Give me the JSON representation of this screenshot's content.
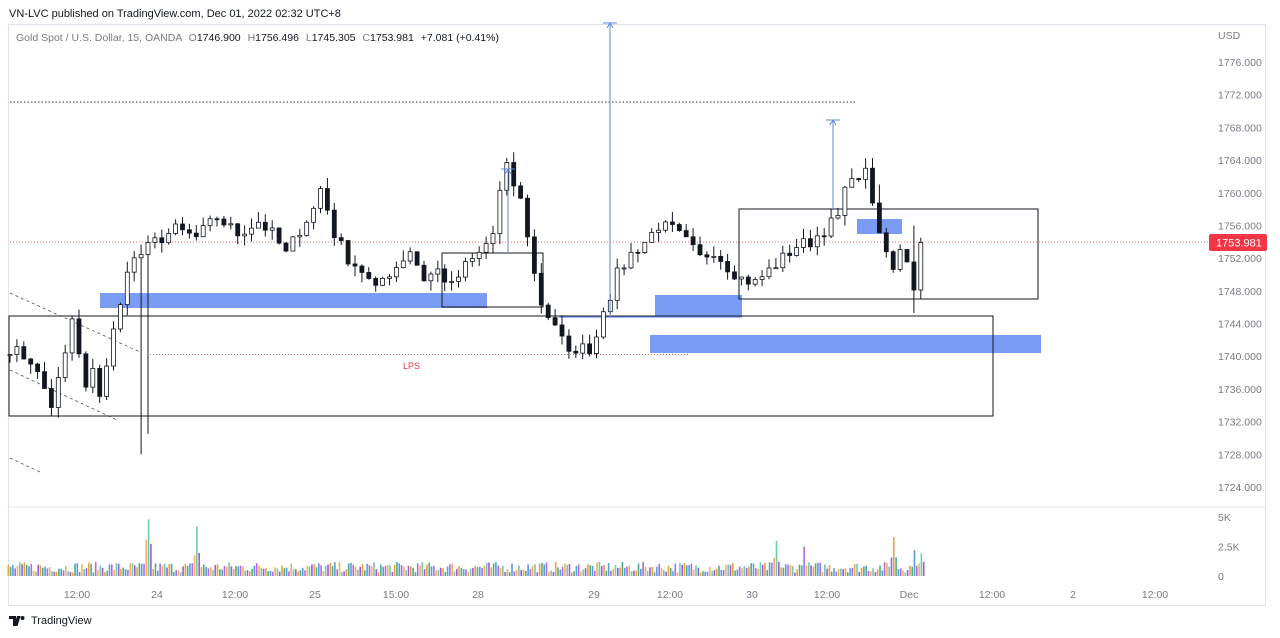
{
  "header": {
    "publisher_line": "VN-LVC published on TradingView.com, Dec 01, 2022 02:32 UTC+8"
  },
  "legend": {
    "symbol": "Gold Spot / U.S. Dollar, 15, OANDA",
    "open_label": "O",
    "open": "1746.900",
    "high_label": "H",
    "high": "1756.496",
    "low_label": "L",
    "low": "1745.305",
    "close_label": "C",
    "close": "1753.981",
    "change": "+7.081 (+0.41%)"
  },
  "footer": {
    "brand": "TradingView"
  },
  "colors": {
    "zone_blue": "#7b9cf5",
    "target_line": "#5b8bd8",
    "price_tag": "#f23645",
    "candle": "#131722",
    "volume_palette": [
      "#e8a33c",
      "#4caf8a",
      "#5b9be6",
      "#b56ad9",
      "#f0b35a",
      "#71c9b5",
      "#a05ad8"
    ]
  },
  "chart_data": {
    "type": "candlestick",
    "instrument": "Gold Spot / U.S. Dollar",
    "interval": "15",
    "currency_label": "USD",
    "ylim": [
      1721,
      1780
    ],
    "y_ticks": [
      "1776.000",
      "1772.000",
      "1768.000",
      "1764.000",
      "1760.000",
      "1756.000",
      "1752.000",
      "1748.000",
      "1744.000",
      "1740.000",
      "1736.000",
      "1732.000",
      "1728.000",
      "1724.000"
    ],
    "x_ticks": [
      "12:00",
      "24",
      "12:00",
      "25",
      "15:00",
      "28",
      "29",
      "12:00",
      "30",
      "12:00",
      "Dec",
      "12:00",
      "2",
      "12:00"
    ],
    "last_price": "1753.981",
    "annotation_text": "LPS",
    "price_path": [
      [
        0,
        1741
      ],
      [
        3,
        1739.5
      ],
      [
        5,
        1736
      ],
      [
        6,
        1734
      ],
      [
        7,
        1737
      ],
      [
        8,
        1740
      ],
      [
        9,
        1744.5
      ],
      [
        10,
        1740
      ],
      [
        11,
        1736
      ],
      [
        12,
        1738
      ],
      [
        13,
        1735.5
      ],
      [
        14,
        1739
      ],
      [
        15,
        1743
      ],
      [
        16,
        1746
      ],
      [
        17,
        1751
      ],
      [
        19,
        1752.5
      ],
      [
        21,
        1754
      ],
      [
        24,
        1755.5
      ],
      [
        27,
        1754.5
      ],
      [
        30,
        1757
      ],
      [
        33,
        1755
      ],
      [
        36,
        1756.5
      ],
      [
        38,
        1755
      ],
      [
        40,
        1752.5
      ],
      [
        42,
        1755.5
      ],
      [
        44,
        1758
      ],
      [
        45,
        1760.5
      ],
      [
        46,
        1758
      ],
      [
        47,
        1755
      ],
      [
        49,
        1752
      ],
      [
        51,
        1750.5
      ],
      [
        53,
        1748
      ],
      [
        54,
        1749.5
      ],
      [
        56,
        1751
      ],
      [
        58,
        1753
      ],
      [
        60,
        1749.5
      ],
      [
        62,
        1750.5
      ],
      [
        64,
        1748.5
      ],
      [
        66,
        1751
      ],
      [
        68,
        1752.5
      ],
      [
        70,
        1755
      ],
      [
        71,
        1760
      ],
      [
        72,
        1763
      ],
      [
        73,
        1761
      ],
      [
        74,
        1759
      ],
      [
        75,
        1755
      ],
      [
        76,
        1750
      ],
      [
        77,
        1746.5
      ],
      [
        78,
        1745
      ],
      [
        79,
        1744
      ],
      [
        80,
        1742
      ],
      [
        81,
        1740
      ],
      [
        82,
        1741
      ],
      [
        84,
        1741
      ],
      [
        85,
        1742.5
      ],
      [
        86,
        1746
      ],
      [
        87,
        1747.5
      ],
      [
        88,
        1750
      ],
      [
        90,
        1752.5
      ],
      [
        92,
        1754
      ],
      [
        94,
        1756
      ],
      [
        96,
        1755.5
      ],
      [
        98,
        1754
      ],
      [
        100,
        1752
      ],
      [
        102,
        1753
      ],
      [
        104,
        1751
      ],
      [
        106,
        1749.5
      ],
      [
        108,
        1749
      ],
      [
        110,
        1750.5
      ],
      [
        112,
        1752
      ],
      [
        114,
        1753.5
      ],
      [
        116,
        1754
      ],
      [
        118,
        1755.5
      ],
      [
        120,
        1757
      ],
      [
        121,
        1760
      ],
      [
        122,
        1762.5
      ],
      [
        123,
        1761
      ],
      [
        124,
        1763.5
      ],
      [
        125,
        1758
      ],
      [
        126,
        1755
      ],
      [
        127,
        1752.5
      ],
      [
        128,
        1751
      ],
      [
        129,
        1753.5
      ],
      [
        130,
        1752
      ],
      [
        131,
        1748
      ],
      [
        132,
        1753.9
      ]
    ],
    "volume_axis": [
      "5K",
      "2.5K",
      "0"
    ],
    "volume_ylim": [
      0,
      5000
    ],
    "volume_spikes": [
      [
        20,
        4800
      ],
      [
        27,
        4200
      ],
      [
        111,
        3000
      ],
      [
        115,
        2500
      ],
      [
        128,
        3300
      ],
      [
        131,
        2200
      ],
      [
        132,
        1900
      ]
    ]
  }
}
